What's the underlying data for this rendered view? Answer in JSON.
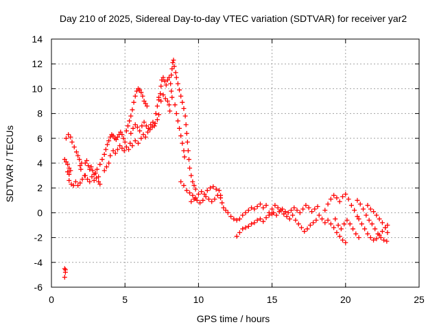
{
  "chart_data": {
    "type": "scatter",
    "title": "Day 210 of 2025, Sidereal Day-to-day VTEC variation (SDTVAR) for receiver yar2",
    "xlabel": "GPS time / hours",
    "ylabel": "SDTVAR / TECUs",
    "xlim": [
      0,
      25
    ],
    "ylim": [
      -6,
      14
    ],
    "xticks": [
      0,
      5,
      10,
      15,
      20,
      25
    ],
    "yticks": [
      -6,
      -4,
      -2,
      0,
      2,
      4,
      6,
      8,
      10,
      12,
      14
    ],
    "xtick_labels": [
      "0",
      "5",
      "10",
      "15",
      "20",
      "25"
    ],
    "ytick_labels": [
      "-6",
      "-4",
      "-2",
      "0",
      "2",
      "4",
      "6",
      "8",
      "10",
      "12",
      "14"
    ],
    "grid": true,
    "marker": "plus",
    "color": "#ff0000",
    "series": [
      {
        "name": "SDTVAR",
        "points": [
          [
            0.9,
            -4.5
          ],
          [
            0.95,
            -4.8
          ],
          [
            0.9,
            -5.2
          ],
          [
            0.95,
            -4.6
          ],
          [
            0.9,
            4.3
          ],
          [
            1.0,
            4.1
          ],
          [
            1.1,
            3.9
          ],
          [
            1.2,
            3.6
          ],
          [
            1.3,
            3.4
          ],
          [
            1.2,
            3.1
          ],
          [
            1.1,
            3.3
          ],
          [
            1.0,
            6.0
          ],
          [
            1.15,
            6.3
          ],
          [
            1.3,
            6.1
          ],
          [
            1.4,
            5.7
          ],
          [
            1.55,
            5.3
          ],
          [
            1.7,
            4.9
          ],
          [
            1.8,
            4.6
          ],
          [
            1.9,
            4.3
          ],
          [
            1.95,
            3.8
          ],
          [
            2.0,
            3.5
          ],
          [
            2.05,
            4.0
          ],
          [
            1.2,
            2.6
          ],
          [
            1.35,
            2.3
          ],
          [
            1.5,
            2.2
          ],
          [
            1.65,
            2.5
          ],
          [
            1.8,
            2.2
          ],
          [
            1.95,
            2.4
          ],
          [
            2.1,
            2.7
          ],
          [
            2.25,
            3.0
          ],
          [
            2.3,
            4.0
          ],
          [
            2.4,
            4.2
          ],
          [
            2.5,
            3.8
          ],
          [
            2.6,
            3.5
          ],
          [
            2.7,
            3.7
          ],
          [
            2.8,
            3.4
          ],
          [
            2.9,
            3.1
          ],
          [
            3.0,
            3.2
          ],
          [
            3.1,
            3.5
          ],
          [
            2.3,
            3.0
          ],
          [
            2.45,
            2.7
          ],
          [
            2.6,
            2.5
          ],
          [
            2.75,
            2.9
          ],
          [
            2.9,
            2.6
          ],
          [
            3.05,
            2.8
          ],
          [
            3.2,
            2.5
          ],
          [
            3.3,
            2.3
          ],
          [
            3.2,
            2.9
          ],
          [
            3.3,
            3.9
          ],
          [
            3.45,
            4.3
          ],
          [
            3.6,
            4.7
          ],
          [
            3.7,
            5.1
          ],
          [
            3.8,
            5.5
          ],
          [
            3.9,
            5.8
          ],
          [
            4.0,
            6.1
          ],
          [
            4.1,
            6.3
          ],
          [
            4.2,
            6.2
          ],
          [
            4.3,
            6.0
          ],
          [
            4.4,
            5.9
          ],
          [
            4.5,
            6.1
          ],
          [
            4.6,
            6.3
          ],
          [
            4.7,
            6.5
          ],
          [
            4.8,
            6.3
          ],
          [
            4.9,
            6.0
          ],
          [
            5.0,
            5.7
          ],
          [
            3.6,
            3.4
          ],
          [
            3.75,
            3.7
          ],
          [
            3.9,
            4.0
          ],
          [
            4.0,
            4.6
          ],
          [
            4.2,
            5.0
          ],
          [
            4.35,
            4.8
          ],
          [
            4.5,
            5.1
          ],
          [
            4.65,
            5.4
          ],
          [
            4.8,
            5.2
          ],
          [
            4.95,
            5.0
          ],
          [
            5.1,
            5.3
          ],
          [
            5.25,
            5.1
          ],
          [
            5.35,
            5.6
          ],
          [
            5.1,
            6.6
          ],
          [
            5.2,
            7.0
          ],
          [
            5.3,
            7.4
          ],
          [
            5.4,
            7.8
          ],
          [
            5.5,
            8.3
          ],
          [
            5.6,
            8.9
          ],
          [
            5.7,
            9.4
          ],
          [
            5.8,
            9.8
          ],
          [
            5.9,
            10.0
          ],
          [
            6.0,
            9.9
          ],
          [
            6.1,
            9.7
          ],
          [
            6.2,
            9.4
          ],
          [
            6.3,
            9.0
          ],
          [
            6.4,
            8.8
          ],
          [
            6.5,
            8.6
          ],
          [
            5.4,
            6.4
          ],
          [
            5.55,
            6.8
          ],
          [
            5.7,
            7.1
          ],
          [
            5.85,
            6.9
          ],
          [
            6.0,
            6.6
          ],
          [
            6.15,
            7.0
          ],
          [
            6.3,
            7.3
          ],
          [
            6.45,
            7.0
          ],
          [
            6.6,
            6.8
          ],
          [
            6.75,
            7.1
          ],
          [
            6.9,
            7.3
          ],
          [
            7.05,
            7.2
          ],
          [
            7.2,
            7.5
          ],
          [
            7.3,
            7.9
          ],
          [
            5.5,
            5.4
          ],
          [
            5.7,
            5.8
          ],
          [
            5.9,
            5.6
          ],
          [
            6.1,
            6.0
          ],
          [
            6.25,
            6.3
          ],
          [
            6.4,
            6.1
          ],
          [
            6.55,
            6.5
          ],
          [
            6.7,
            6.7
          ],
          [
            6.85,
            6.9
          ],
          [
            7.0,
            7.0
          ],
          [
            7.1,
            8.0
          ],
          [
            7.2,
            8.6
          ],
          [
            7.3,
            9.1
          ],
          [
            7.4,
            9.6
          ],
          [
            7.45,
            10.2
          ],
          [
            7.5,
            10.7
          ],
          [
            7.6,
            10.9
          ],
          [
            7.7,
            10.6
          ],
          [
            7.8,
            10.3
          ],
          [
            7.9,
            10.7
          ],
          [
            8.0,
            10.9
          ],
          [
            8.1,
            10.4
          ],
          [
            8.15,
            9.8
          ],
          [
            8.2,
            9.3
          ],
          [
            7.3,
            9.3
          ],
          [
            7.45,
            9.0
          ],
          [
            7.6,
            9.5
          ],
          [
            7.75,
            9.2
          ],
          [
            7.9,
            9.0
          ],
          [
            8.0,
            8.7
          ],
          [
            8.05,
            8.2
          ],
          [
            8.15,
            11.1
          ],
          [
            8.2,
            11.6
          ],
          [
            8.25,
            12.1
          ],
          [
            8.3,
            12.3
          ],
          [
            8.35,
            11.8
          ],
          [
            8.45,
            11.3
          ],
          [
            8.5,
            10.9
          ],
          [
            8.6,
            10.4
          ],
          [
            8.7,
            9.9
          ],
          [
            8.8,
            9.4
          ],
          [
            8.9,
            8.9
          ],
          [
            9.0,
            8.4
          ],
          [
            8.4,
            8.7
          ],
          [
            8.5,
            8.0
          ],
          [
            8.6,
            7.4
          ],
          [
            8.7,
            6.8
          ],
          [
            8.8,
            6.2
          ],
          [
            8.9,
            5.6
          ],
          [
            9.0,
            5.0
          ],
          [
            9.05,
            4.5
          ],
          [
            9.1,
            7.8
          ],
          [
            9.15,
            7.1
          ],
          [
            9.2,
            6.4
          ],
          [
            9.25,
            5.7
          ],
          [
            9.3,
            5.0
          ],
          [
            9.35,
            4.3
          ],
          [
            9.4,
            3.6
          ],
          [
            9.5,
            3.0
          ],
          [
            9.6,
            2.5
          ],
          [
            9.7,
            2.2
          ],
          [
            9.8,
            1.9
          ],
          [
            8.8,
            2.5
          ],
          [
            9.0,
            2.2
          ],
          [
            9.2,
            1.8
          ],
          [
            9.4,
            1.6
          ],
          [
            9.6,
            1.4
          ],
          [
            9.8,
            1.2
          ],
          [
            10.0,
            1.5
          ],
          [
            10.2,
            1.7
          ],
          [
            10.4,
            1.5
          ],
          [
            10.6,
            1.8
          ],
          [
            10.8,
            2.0
          ],
          [
            11.0,
            2.1
          ],
          [
            11.2,
            1.9
          ],
          [
            9.5,
            0.9
          ],
          [
            9.7,
            1.1
          ],
          [
            9.9,
            1.0
          ],
          [
            10.1,
            0.8
          ],
          [
            10.3,
            1.0
          ],
          [
            10.5,
            1.3
          ],
          [
            10.7,
            1.1
          ],
          [
            10.9,
            0.9
          ],
          [
            11.1,
            1.1
          ],
          [
            11.3,
            1.4
          ],
          [
            11.5,
            1.2
          ],
          [
            11.4,
            1.8
          ],
          [
            11.5,
            1.4
          ],
          [
            11.6,
            0.8
          ],
          [
            11.7,
            0.4
          ],
          [
            11.85,
            0.2
          ],
          [
            12.0,
            0.0
          ],
          [
            12.2,
            -0.3
          ],
          [
            12.4,
            -0.5
          ],
          [
            12.6,
            -0.6
          ],
          [
            12.8,
            -0.5
          ],
          [
            13.0,
            -0.2
          ],
          [
            13.2,
            0.0
          ],
          [
            13.4,
            0.2
          ],
          [
            13.6,
            0.4
          ],
          [
            13.8,
            0.3
          ],
          [
            14.0,
            0.5
          ],
          [
            14.2,
            0.7
          ],
          [
            14.4,
            0.4
          ],
          [
            14.6,
            0.6
          ],
          [
            12.6,
            -1.9
          ],
          [
            12.8,
            -1.6
          ],
          [
            13.0,
            -1.3
          ],
          [
            13.2,
            -1.2
          ],
          [
            13.4,
            -1.1
          ],
          [
            13.6,
            -0.9
          ],
          [
            13.8,
            -0.8
          ],
          [
            14.0,
            -0.6
          ],
          [
            14.2,
            -0.5
          ],
          [
            14.4,
            -0.7
          ],
          [
            14.6,
            -0.4
          ],
          [
            14.8,
            -0.2
          ],
          [
            15.0,
            -0.1
          ],
          [
            14.8,
            0.0
          ],
          [
            15.0,
            0.3
          ],
          [
            15.2,
            0.6
          ],
          [
            15.4,
            0.4
          ],
          [
            15.6,
            0.2
          ],
          [
            15.8,
            -0.1
          ],
          [
            16.0,
            -0.3
          ],
          [
            16.2,
            -0.5
          ],
          [
            16.4,
            -0.2
          ],
          [
            16.6,
            -0.6
          ],
          [
            16.8,
            -0.9
          ],
          [
            17.0,
            -1.2
          ],
          [
            17.2,
            -1.5
          ],
          [
            17.4,
            -1.3
          ],
          [
            17.6,
            -1.0
          ],
          [
            17.8,
            -0.8
          ],
          [
            18.0,
            -0.6
          ],
          [
            15.1,
            0.0
          ],
          [
            15.3,
            -0.2
          ],
          [
            15.5,
            0.1
          ],
          [
            15.7,
            0.3
          ],
          [
            15.9,
            0.1
          ],
          [
            16.1,
            0.0
          ],
          [
            16.3,
            0.2
          ],
          [
            16.5,
            0.4
          ],
          [
            16.7,
            0.2
          ],
          [
            16.9,
            0.0
          ],
          [
            17.1,
            0.3
          ],
          [
            17.3,
            0.6
          ],
          [
            17.5,
            0.4
          ],
          [
            17.7,
            0.1
          ],
          [
            17.9,
            0.3
          ],
          [
            18.1,
            0.5
          ],
          [
            18.2,
            -0.2
          ],
          [
            18.4,
            -0.5
          ],
          [
            18.6,
            -0.8
          ],
          [
            18.8,
            -0.6
          ],
          [
            19.0,
            -0.9
          ],
          [
            19.2,
            -1.2
          ],
          [
            19.4,
            -1.6
          ],
          [
            19.6,
            -1.9
          ],
          [
            19.8,
            -2.2
          ],
          [
            20.0,
            -2.4
          ],
          [
            18.6,
            0.2
          ],
          [
            18.8,
            0.7
          ],
          [
            19.0,
            1.1
          ],
          [
            19.2,
            1.4
          ],
          [
            19.4,
            1.2
          ],
          [
            19.6,
            0.9
          ],
          [
            19.8,
            1.3
          ],
          [
            20.0,
            1.5
          ],
          [
            20.2,
            1.1
          ],
          [
            20.4,
            0.6
          ],
          [
            20.6,
            0.2
          ],
          [
            20.8,
            -0.3
          ],
          [
            19.3,
            -0.5
          ],
          [
            19.5,
            -1.0
          ],
          [
            19.7,
            -1.3
          ],
          [
            19.9,
            -0.9
          ],
          [
            20.1,
            -0.6
          ],
          [
            20.3,
            -0.9
          ],
          [
            20.5,
            -1.3
          ],
          [
            20.7,
            -1.7
          ],
          [
            20.9,
            -2.0
          ],
          [
            20.8,
            1.0
          ],
          [
            21.0,
            0.7
          ],
          [
            21.2,
            0.3
          ],
          [
            21.4,
            -0.2
          ],
          [
            21.6,
            -0.6
          ],
          [
            21.8,
            -0.9
          ],
          [
            22.0,
            -1.3
          ],
          [
            22.2,
            -1.7
          ],
          [
            22.4,
            -2.0
          ],
          [
            22.6,
            -2.2
          ],
          [
            22.8,
            -2.3
          ],
          [
            20.9,
            -0.5
          ],
          [
            21.1,
            -0.9
          ],
          [
            21.3,
            -1.3
          ],
          [
            21.5,
            -1.7
          ],
          [
            21.7,
            -2.0
          ],
          [
            21.9,
            -2.2
          ],
          [
            22.1,
            -2.1
          ],
          [
            22.3,
            -1.8
          ],
          [
            22.5,
            -1.5
          ],
          [
            22.7,
            -1.2
          ],
          [
            22.85,
            -1.0
          ],
          [
            21.5,
            0.6
          ],
          [
            21.7,
            0.3
          ],
          [
            21.9,
            0.1
          ],
          [
            22.1,
            -0.2
          ],
          [
            22.3,
            -0.5
          ],
          [
            22.5,
            -0.8
          ],
          [
            22.7,
            -1.2
          ],
          [
            22.85,
            -1.6
          ]
        ]
      }
    ]
  }
}
